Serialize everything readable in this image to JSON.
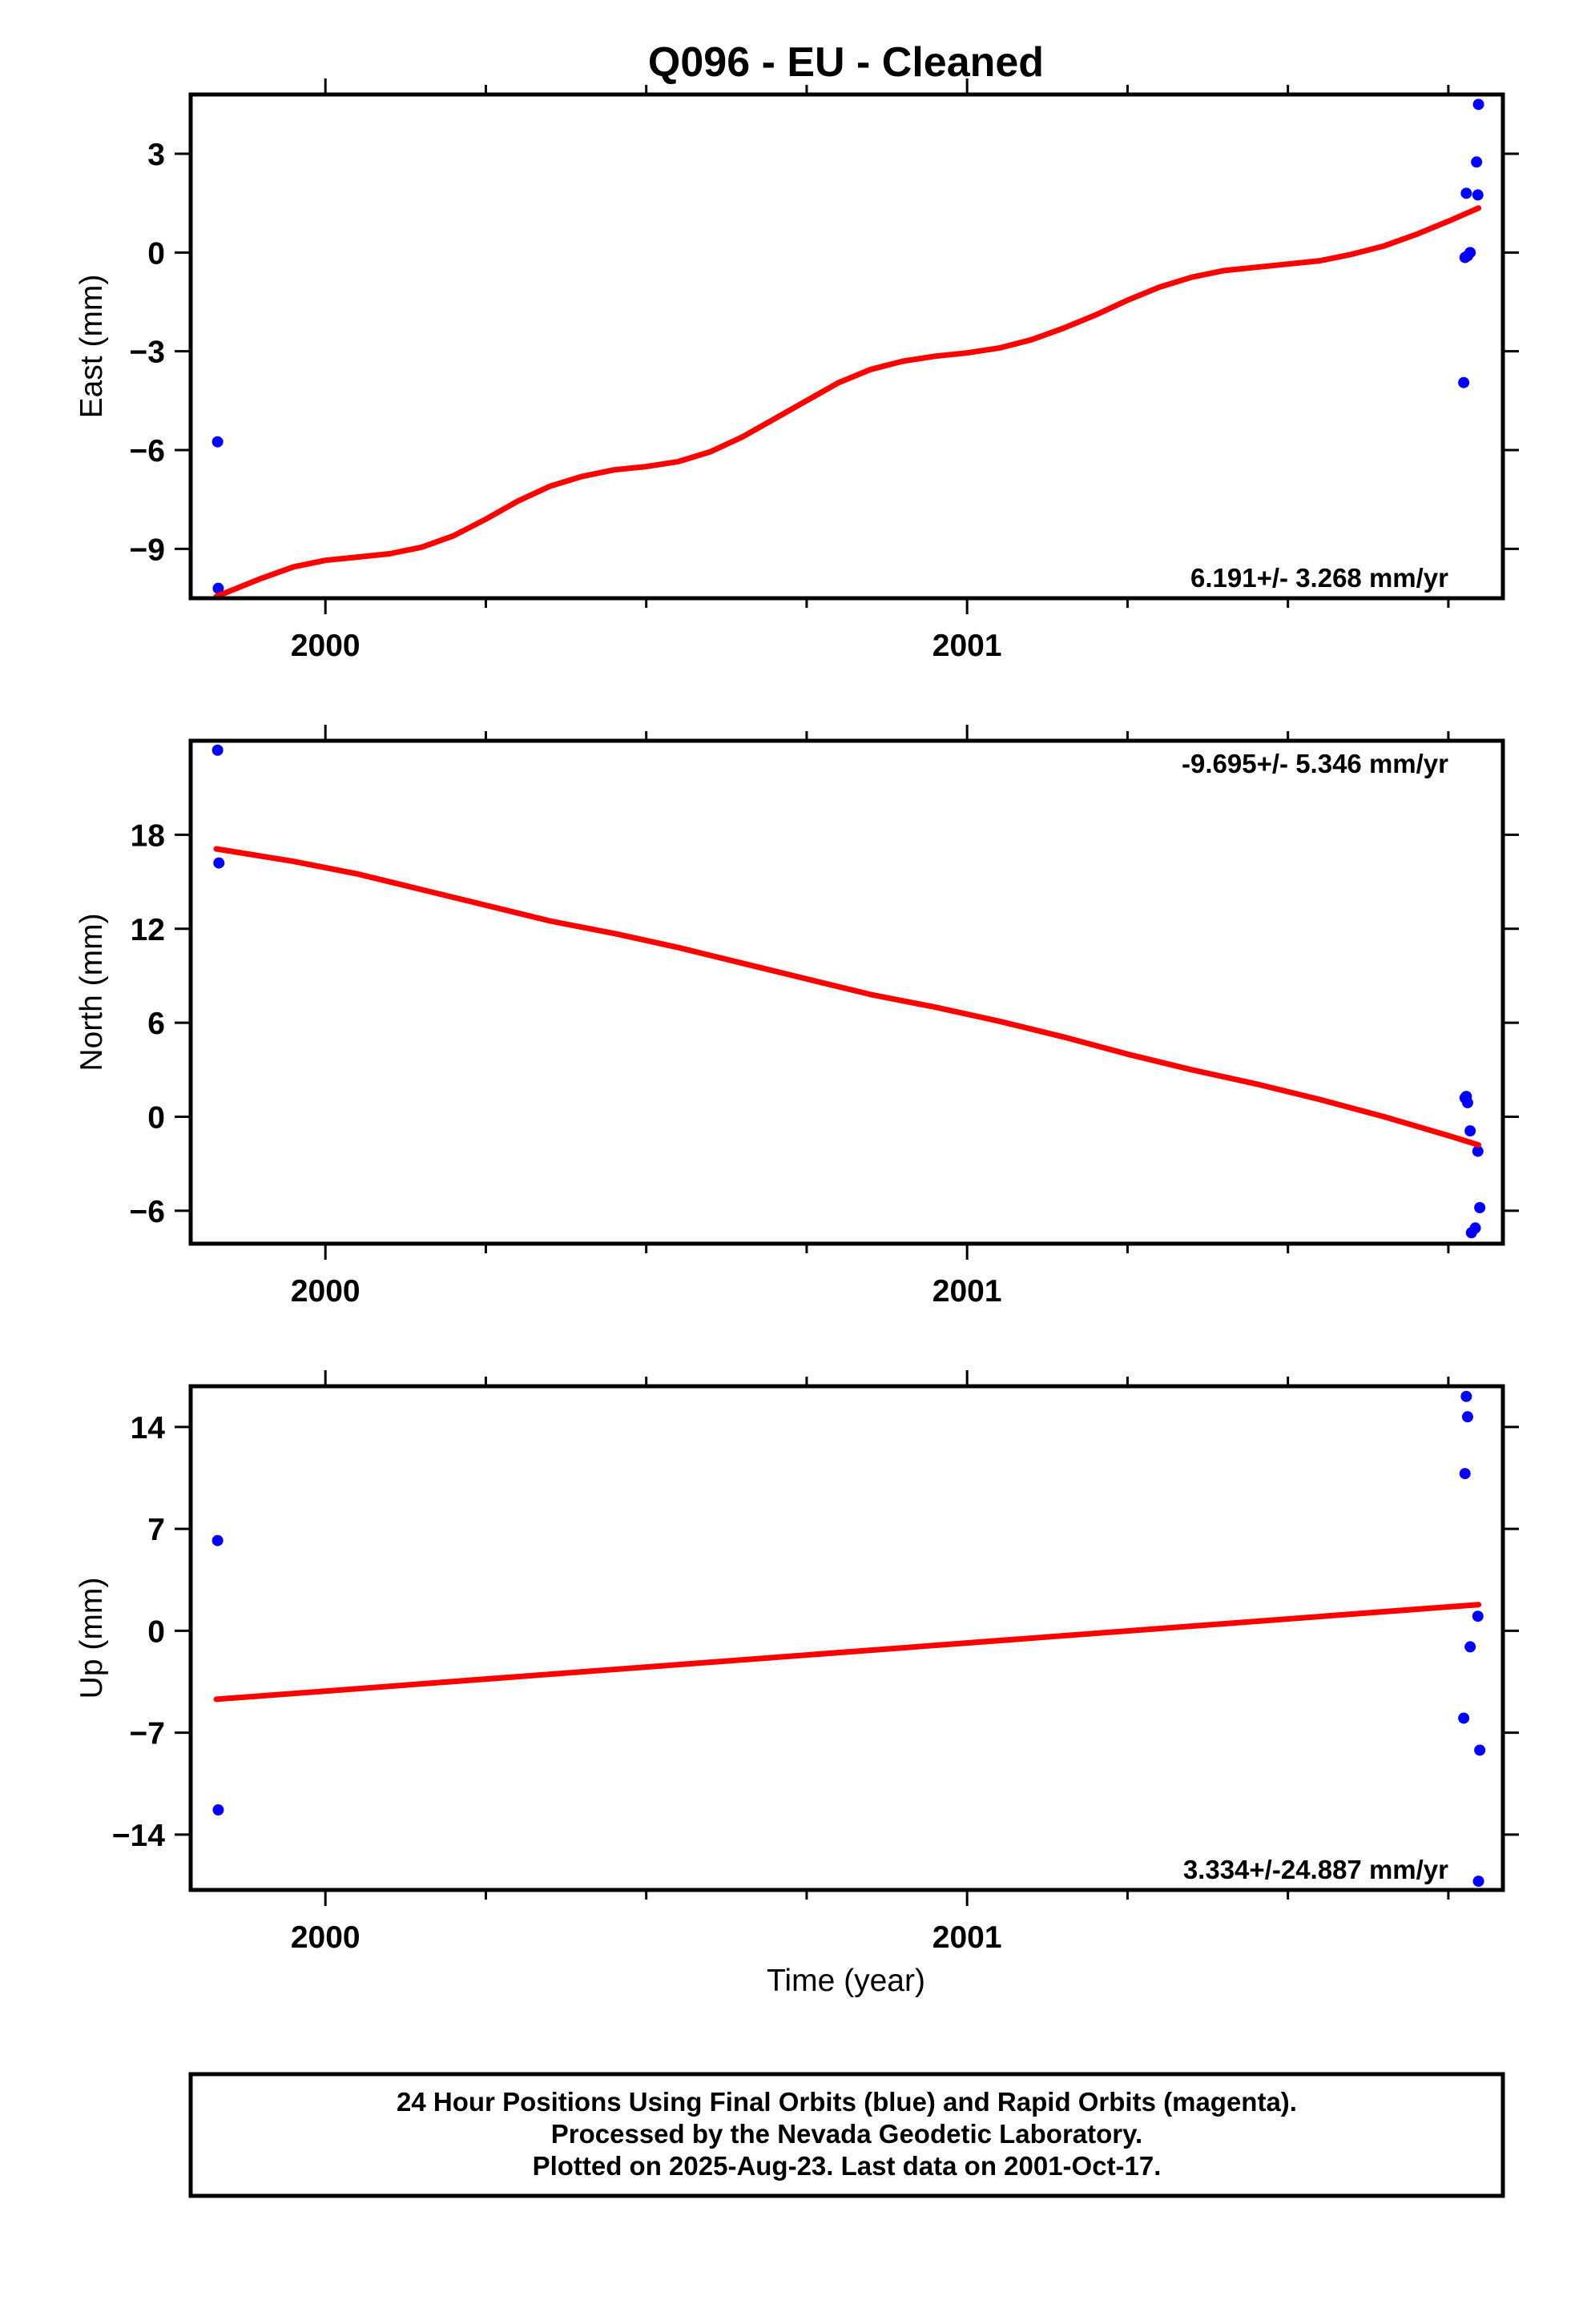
{
  "title": "Q096  - EU - Cleaned",
  "x_axis_label": "Time (year)",
  "footer_lines": [
    "24 Hour Positions Using Final Orbits (blue) and Rapid Orbits (magenta).",
    "Processed by the Nevada Geodetic Laboratory.",
    "Plotted on 2025-Aug-23. Last data on 2001-Oct-17."
  ],
  "colors": {
    "points": "#0000ff",
    "fit": "#ff0000",
    "frame": "#000000"
  },
  "chart_data": [
    {
      "type": "scatter",
      "component": "east",
      "ylabel": "East (mm)",
      "xlim": [
        1999.79,
        2001.835
      ],
      "ylim": [
        -10.5,
        4.8
      ],
      "xticks": [
        2000,
        2001
      ],
      "x_minor_step": 0.25,
      "yticks": [
        3,
        0,
        -3,
        -6,
        -9
      ],
      "ytick_labels": [
        "3",
        "0",
        "−3",
        "−6",
        "−9"
      ],
      "rate_text": "6.191+/- 3.268 mm/yr",
      "rate_position": "bottom-right",
      "points": [
        {
          "x": 1999.832,
          "y": -5.75
        },
        {
          "x": 1999.833,
          "y": -10.2
        },
        {
          "x": 2001.774,
          "y": -3.95
        },
        {
          "x": 2001.776,
          "y": -0.15
        },
        {
          "x": 2001.778,
          "y": 1.8
        },
        {
          "x": 2001.78,
          "y": -0.1
        },
        {
          "x": 2001.784,
          "y": 0.0
        },
        {
          "x": 2001.794,
          "y": 2.75
        },
        {
          "x": 2001.796,
          "y": 1.75
        },
        {
          "x": 2001.797,
          "y": 4.5
        }
      ],
      "fit": {
        "x": [
          1999.83,
          1999.9,
          1999.95,
          2000.0,
          2000.05,
          2000.1,
          2000.15,
          2000.2,
          2000.25,
          2000.3,
          2000.35,
          2000.4,
          2000.45,
          2000.5,
          2000.55,
          2000.6,
          2000.65,
          2000.7,
          2000.75,
          2000.8,
          2000.85,
          2000.9,
          2000.95,
          2001.0,
          2001.05,
          2001.1,
          2001.15,
          2001.2,
          2001.25,
          2001.3,
          2001.35,
          2001.4,
          2001.45,
          2001.5,
          2001.55,
          2001.6,
          2001.65,
          2001.7,
          2001.75,
          2001.797
        ],
        "y": [
          -10.45,
          -9.9,
          -9.55,
          -9.35,
          -9.25,
          -9.15,
          -8.95,
          -8.6,
          -8.1,
          -7.55,
          -7.1,
          -6.8,
          -6.6,
          -6.5,
          -6.35,
          -6.05,
          -5.6,
          -5.05,
          -4.5,
          -3.95,
          -3.55,
          -3.3,
          -3.15,
          -3.05,
          -2.9,
          -2.65,
          -2.3,
          -1.9,
          -1.45,
          -1.05,
          -0.75,
          -0.55,
          -0.45,
          -0.35,
          -0.25,
          -0.05,
          0.2,
          0.55,
          0.95,
          1.35
        ]
      }
    },
    {
      "type": "scatter",
      "component": "north",
      "ylabel": "North (mm)",
      "xlim": [
        1999.79,
        2001.835
      ],
      "ylim": [
        -8.1,
        24.0
      ],
      "xticks": [
        2000,
        2001
      ],
      "x_minor_step": 0.25,
      "yticks": [
        18,
        12,
        6,
        0,
        -6
      ],
      "ytick_labels": [
        "18",
        "12",
        "6",
        "0",
        "−6"
      ],
      "rate_text": "-9.695+/- 5.346 mm/yr",
      "rate_position": "top-right",
      "points": [
        {
          "x": 1999.832,
          "y": 23.4
        },
        {
          "x": 1999.834,
          "y": 16.2
        },
        {
          "x": 2001.776,
          "y": 1.2
        },
        {
          "x": 2001.778,
          "y": 1.3
        },
        {
          "x": 2001.78,
          "y": 0.9
        },
        {
          "x": 2001.784,
          "y": -0.9
        },
        {
          "x": 2001.786,
          "y": -7.4
        },
        {
          "x": 2001.792,
          "y": -7.1
        },
        {
          "x": 2001.796,
          "y": -2.2
        },
        {
          "x": 2001.799,
          "y": -5.8
        }
      ],
      "fit": {
        "x": [
          1999.83,
          1999.95,
          2000.05,
          2000.15,
          2000.25,
          2000.35,
          2000.45,
          2000.55,
          2000.65,
          2000.75,
          2000.85,
          2000.95,
          2001.05,
          2001.15,
          2001.25,
          2001.35,
          2001.45,
          2001.55,
          2001.65,
          2001.75,
          2001.797
        ],
        "y": [
          17.1,
          16.3,
          15.5,
          14.5,
          13.5,
          12.5,
          11.7,
          10.8,
          9.8,
          8.8,
          7.8,
          7.0,
          6.1,
          5.1,
          4.0,
          3.0,
          2.1,
          1.1,
          0.0,
          -1.2,
          -1.8
        ]
      }
    },
    {
      "type": "scatter",
      "component": "up",
      "ylabel": "Up (mm)",
      "xlim": [
        1999.79,
        2001.835
      ],
      "ylim": [
        -17.8,
        16.8
      ],
      "xticks": [
        2000,
        2001
      ],
      "x_minor_step": 0.25,
      "yticks": [
        14,
        7,
        0,
        -7,
        -14
      ],
      "ytick_labels": [
        "14",
        "7",
        "0",
        "−7",
        "−14"
      ],
      "rate_text": "3.334+/-24.887 mm/yr",
      "rate_position": "bottom-right",
      "points": [
        {
          "x": 1999.832,
          "y": 6.2
        },
        {
          "x": 1999.833,
          "y": -12.3
        },
        {
          "x": 2001.774,
          "y": -6.0
        },
        {
          "x": 2001.776,
          "y": 10.8
        },
        {
          "x": 2001.778,
          "y": 16.1
        },
        {
          "x": 2001.78,
          "y": 14.7
        },
        {
          "x": 2001.784,
          "y": -1.1
        },
        {
          "x": 2001.796,
          "y": 1.0
        },
        {
          "x": 2001.797,
          "y": -17.2
        },
        {
          "x": 2001.799,
          "y": -8.2
        }
      ],
      "fit": {
        "x": [
          1999.83,
          2001.797
        ],
        "y": [
          -4.7,
          1.8
        ]
      }
    }
  ]
}
